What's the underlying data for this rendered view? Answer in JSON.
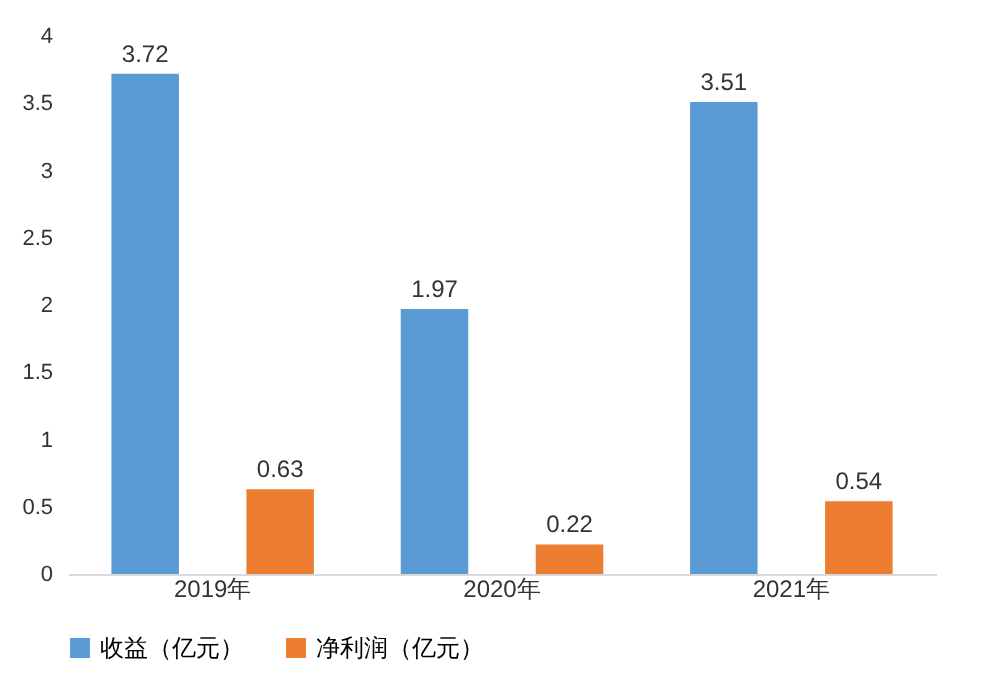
{
  "chart_data": {
    "type": "bar",
    "categories": [
      "2019年",
      "2020年",
      "2021年"
    ],
    "series": [
      {
        "name": "收益（亿元）",
        "color": "#5b9bd5",
        "values": [
          3.72,
          1.97,
          3.51
        ]
      },
      {
        "name": "净利润（亿元）",
        "color": "#ed7d31",
        "values": [
          0.63,
          0.22,
          0.54
        ]
      }
    ],
    "ylim": [
      0,
      4
    ],
    "yticks": [
      0,
      0.5,
      1,
      1.5,
      2,
      2.5,
      3,
      3.5,
      4
    ],
    "legend": "bottom",
    "data_labels": true
  }
}
